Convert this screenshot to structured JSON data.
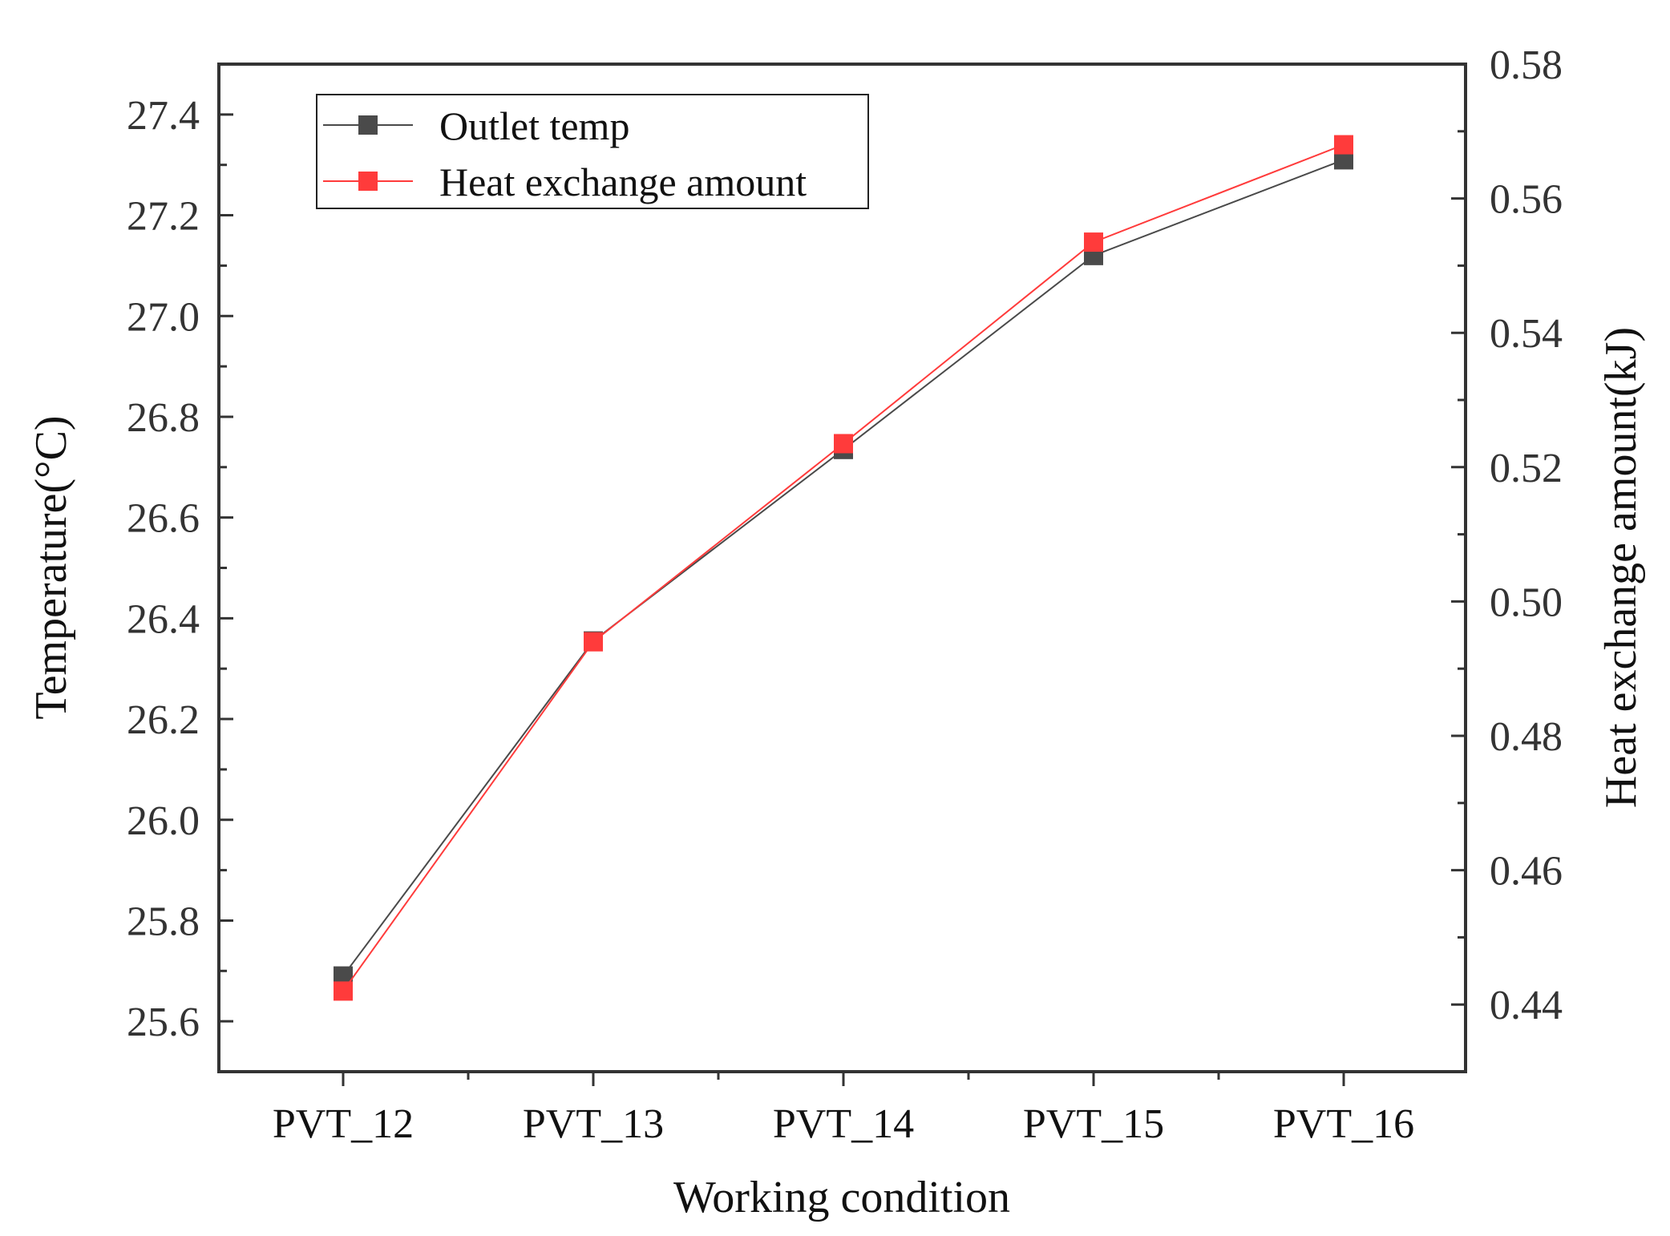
{
  "chart_data": {
    "type": "line",
    "title": "",
    "xlabel": "Working condition",
    "ylabel_left": "Temperature(°C)",
    "ylabel_right": "Heat exchange amount(kJ)",
    "categories": [
      "PVT_12",
      "PVT_13",
      "PVT_14",
      "PVT_15",
      "PVT_16"
    ],
    "ylim_left": [
      25.5,
      27.5
    ],
    "ylim_right": [
      0.43,
      0.58
    ],
    "yticks_left": [
      "25.6",
      "25.8",
      "26.0",
      "26.2",
      "26.4",
      "26.6",
      "26.8",
      "27.0",
      "27.2",
      "27.4"
    ],
    "yticks_right": [
      "0.44",
      "0.46",
      "0.48",
      "0.50",
      "0.52",
      "0.54",
      "0.56",
      "0.58"
    ],
    "series": [
      {
        "name": "Outlet temp",
        "axis": "left",
        "color": "#4a4a4a",
        "marker": "square",
        "values": [
          25.69,
          26.355,
          26.735,
          27.12,
          27.31
        ]
      },
      {
        "name": "Heat exchange amount",
        "axis": "right",
        "color": "#ff3b3b",
        "marker": "square",
        "values": [
          0.442,
          0.494,
          0.5235,
          0.5535,
          0.568
        ]
      }
    ],
    "legend": "top-left",
    "grid": false
  }
}
